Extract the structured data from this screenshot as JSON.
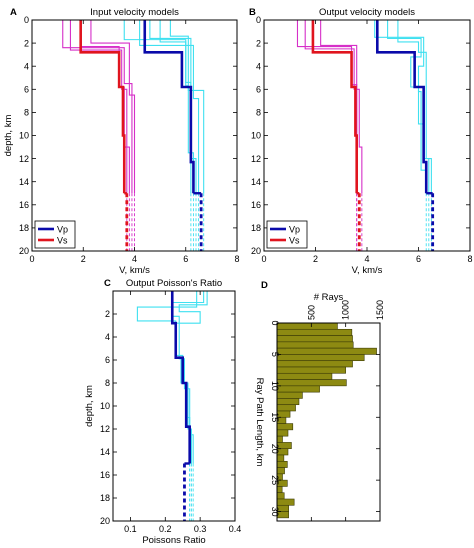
{
  "colors": {
    "vp_main": "#0a0aaa",
    "vp_model": "#3fe0f0",
    "vs_main": "#e0141e",
    "vs_model": "#d62fc8",
    "hist": "#8d8a12",
    "axis": "#000000"
  },
  "chart_data": [
    {
      "id": "A",
      "type": "line",
      "panel_label": "A",
      "title": "Input velocity models",
      "xlabel": "V, km/s",
      "ylabel": "depth, km",
      "xlim": [
        0,
        8
      ],
      "ylim": [
        0,
        20
      ],
      "y_reversed": true,
      "grid": false,
      "x_ticks": [
        0,
        2,
        4,
        6,
        8
      ],
      "y_ticks": [
        0,
        2,
        4,
        6,
        8,
        10,
        12,
        14,
        16,
        18,
        20
      ],
      "legend": {
        "placement": "bottom-left",
        "entries": [
          {
            "label": "Vp",
            "color": "vp_main"
          },
          {
            "label": "Vs",
            "color": "vs_main"
          }
        ]
      },
      "model_series": [
        {
          "color": "vp_model",
          "steps": [
            [
              0,
              4.6
            ],
            [
              1.6,
              6.2
            ],
            [
              5.8,
              6.2
            ],
            [
              12,
              6.4
            ],
            [
              15,
              6.4
            ]
          ]
        },
        {
          "color": "vp_model",
          "steps": [
            [
              0,
              5.0
            ],
            [
              1.9,
              6.0
            ],
            [
              5.7,
              6.1
            ],
            [
              11.5,
              6.3
            ],
            [
              15,
              6.3
            ]
          ]
        },
        {
          "color": "vp_model",
          "steps": [
            [
              0,
              5.4
            ],
            [
              1.4,
              6.1
            ],
            [
              6.1,
              6.7
            ],
            [
              15,
              6.7
            ]
          ]
        },
        {
          "color": "vp_model",
          "steps": [
            [
              0,
              4.2
            ],
            [
              2.2,
              6.3
            ],
            [
              6.8,
              6.5
            ],
            [
              15,
              6.5
            ]
          ]
        },
        {
          "color": "vp_model",
          "steps": [
            [
              0,
              3.6
            ],
            [
              1.7,
              6.0
            ],
            [
              5.4,
              6.2
            ],
            [
              13,
              6.2
            ],
            [
              15,
              6.2
            ]
          ]
        },
        {
          "color": "vs_model",
          "steps": [
            [
              0,
              1.5
            ],
            [
              2.6,
              3.5
            ],
            [
              6,
              3.7
            ],
            [
              15,
              3.7
            ]
          ]
        },
        {
          "color": "vs_model",
          "steps": [
            [
              0,
              1.9
            ],
            [
              2.3,
              3.4
            ],
            [
              5.8,
              3.6
            ],
            [
              11,
              3.8
            ],
            [
              15,
              3.8
            ]
          ]
        },
        {
          "color": "vs_model",
          "steps": [
            [
              0,
              2.3
            ],
            [
              2.0,
              3.8
            ],
            [
              6.5,
              4.0
            ],
            [
              15,
              4.0
            ]
          ]
        },
        {
          "color": "vs_model",
          "steps": [
            [
              0,
              1.2
            ],
            [
              2.4,
              3.6
            ],
            [
              5.5,
              3.9
            ],
            [
              15,
              3.9
            ]
          ]
        }
      ],
      "main_series": [
        {
          "name": "Vp",
          "color": "vp_main",
          "steps": [
            [
              0,
              4.4
            ],
            [
              2.8,
              5.85
            ],
            [
              5.8,
              6.2
            ],
            [
              12.3,
              6.3
            ],
            [
              15,
              6.3
            ]
          ],
          "extension": {
            "value": 6.6,
            "from": 15,
            "to": 20
          }
        },
        {
          "name": "Vs",
          "color": "vs_main",
          "steps": [
            [
              0,
              1.9
            ],
            [
              2.8,
              3.4
            ],
            [
              5.8,
              3.55
            ],
            [
              10,
              3.6
            ],
            [
              15,
              3.6
            ]
          ],
          "extension": {
            "value": 3.7,
            "from": 15,
            "to": 20
          }
        }
      ]
    },
    {
      "id": "B",
      "type": "line",
      "panel_label": "B",
      "title": "Output velocity models",
      "xlabel": "V, km/s",
      "ylabel": "",
      "xlim": [
        0,
        8
      ],
      "ylim": [
        0,
        20
      ],
      "y_reversed": true,
      "grid": false,
      "x_ticks": [
        0,
        2,
        4,
        6,
        8
      ],
      "y_ticks": [
        0,
        2,
        4,
        6,
        8,
        10,
        12,
        14,
        16,
        18,
        20
      ],
      "legend": {
        "placement": "bottom-left",
        "entries": [
          {
            "label": "Vp",
            "color": "vp_main"
          },
          {
            "label": "Vs",
            "color": "vs_main"
          }
        ]
      },
      "model_series": [
        {
          "color": "vp_model",
          "steps": [
            [
              0,
              4.8
            ],
            [
              1.6,
              6.1
            ],
            [
              3.2,
              5.7
            ],
            [
              5.8,
              6.0
            ],
            [
              9,
              6.2
            ],
            [
              12,
              6.4
            ],
            [
              15,
              6.4
            ]
          ]
        },
        {
          "color": "vp_model",
          "steps": [
            [
              0,
              5.2
            ],
            [
              1.9,
              6.0
            ],
            [
              2.8,
              6.3
            ],
            [
              6,
              6.3
            ],
            [
              12,
              6.5
            ],
            [
              15,
              6.5
            ]
          ]
        },
        {
          "color": "vp_model",
          "steps": [
            [
              0,
              4.3
            ],
            [
              1.5,
              6.2
            ],
            [
              4,
              6.0
            ],
            [
              6.2,
              6.1
            ],
            [
              13,
              6.3
            ],
            [
              15,
              6.3
            ]
          ]
        },
        {
          "color": "vs_model",
          "steps": [
            [
              0,
              1.6
            ],
            [
              2.5,
              3.5
            ],
            [
              6,
              3.6
            ],
            [
              15,
              3.6
            ]
          ]
        },
        {
          "color": "vs_model",
          "steps": [
            [
              0,
              2.2
            ],
            [
              2.2,
              3.6
            ],
            [
              6,
              3.7
            ],
            [
              11,
              3.8
            ],
            [
              15,
              3.8
            ]
          ]
        },
        {
          "color": "vs_model",
          "steps": [
            [
              0,
              1.3
            ],
            [
              2.3,
              3.4
            ],
            [
              5.6,
              3.6
            ],
            [
              15,
              3.6
            ]
          ]
        }
      ],
      "main_series": [
        {
          "name": "Vp",
          "color": "vp_main",
          "steps": [
            [
              0,
              4.4
            ],
            [
              2.8,
              5.85
            ],
            [
              5.8,
              6.2
            ],
            [
              12.3,
              6.3
            ],
            [
              15,
              6.3
            ]
          ],
          "extension": {
            "value": 6.55,
            "from": 15,
            "to": 20
          }
        },
        {
          "name": "Vs",
          "color": "vs_main",
          "steps": [
            [
              0,
              1.9
            ],
            [
              2.8,
              3.4
            ],
            [
              5.8,
              3.55
            ],
            [
              10,
              3.6
            ],
            [
              15,
              3.6
            ]
          ],
          "extension": {
            "value": 3.7,
            "from": 15,
            "to": 20
          }
        }
      ]
    },
    {
      "id": "C",
      "type": "line",
      "panel_label": "C",
      "title": "Output Poisson's Ratio",
      "xlabel": "Poissons Ratio",
      "ylabel": "depth, km",
      "xlim": [
        0.05,
        0.4
      ],
      "ylim": [
        0,
        20
      ],
      "y_reversed": true,
      "grid": false,
      "x_ticks": [
        0.1,
        0.2,
        0.3,
        0.4
      ],
      "y_ticks": [
        2,
        4,
        6,
        8,
        10,
        12,
        14,
        16,
        18,
        20
      ],
      "model_series": [
        {
          "color": "vp_model",
          "steps": [
            [
              0,
              0.32
            ],
            [
              1.2,
              0.24
            ],
            [
              1.8,
              0.3
            ],
            [
              2.8,
              0.23
            ],
            [
              5.8,
              0.245
            ],
            [
              8,
              0.265
            ],
            [
              12,
              0.275
            ],
            [
              15,
              0.275
            ]
          ]
        },
        {
          "color": "vp_model",
          "steps": [
            [
              0,
              0.29
            ],
            [
              1.4,
              0.12
            ],
            [
              2.6,
              0.23
            ],
            [
              5.6,
              0.25
            ],
            [
              8,
              0.26
            ],
            [
              11,
              0.27
            ],
            [
              15,
              0.27
            ]
          ]
        },
        {
          "color": "vp_model",
          "steps": [
            [
              0,
              0.31
            ],
            [
              1.0,
              0.22
            ],
            [
              2.2,
              0.24
            ],
            [
              5.9,
              0.255
            ],
            [
              8.5,
              0.27
            ],
            [
              12.5,
              0.28
            ],
            [
              15,
              0.28
            ]
          ]
        }
      ],
      "main_series": [
        {
          "name": "Poisson",
          "color": "vp_main",
          "steps": [
            [
              0,
              0.22
            ],
            [
              2.8,
              0.23
            ],
            [
              5.8,
              0.25
            ],
            [
              8,
              0.26
            ],
            [
              11.8,
              0.27
            ],
            [
              15,
              0.27
            ]
          ],
          "extension": {
            "value": 0.255,
            "from": 15,
            "to": 20
          }
        }
      ],
      "model_extension": {
        "value": 0.27,
        "from": 15,
        "to": 20,
        "color": "vp_model"
      }
    },
    {
      "id": "D",
      "type": "bar",
      "panel_label": "D",
      "orientation": "horizontal",
      "title": "# Rays",
      "xlabel": "# Rays",
      "ylabel": "Ray Path Length, km",
      "xlim": [
        0,
        1500
      ],
      "ylim": [
        0,
        31.5
      ],
      "y_reversed": true,
      "grid": false,
      "x_ticks": [
        0,
        500,
        1000,
        1500
      ],
      "x_axis_position": "top",
      "x_tick_labels_rotated": true,
      "y_ticks": [
        0,
        5,
        10,
        15,
        20,
        25,
        30
      ],
      "bin_width": 1,
      "bins_start": [
        0,
        1,
        2,
        3,
        4,
        5,
        6,
        7,
        8,
        9,
        10,
        11,
        12,
        13,
        14,
        15,
        16,
        17,
        18,
        19,
        20,
        21,
        22,
        23,
        24,
        25,
        26,
        27,
        28,
        29,
        30
      ],
      "values": [
        880,
        1090,
        1100,
        1110,
        1450,
        1270,
        1100,
        1000,
        800,
        1010,
        620,
        370,
        320,
        270,
        190,
        130,
        230,
        160,
        80,
        210,
        160,
        100,
        150,
        110,
        80,
        150,
        75,
        105,
        250,
        170,
        170
      ]
    }
  ]
}
